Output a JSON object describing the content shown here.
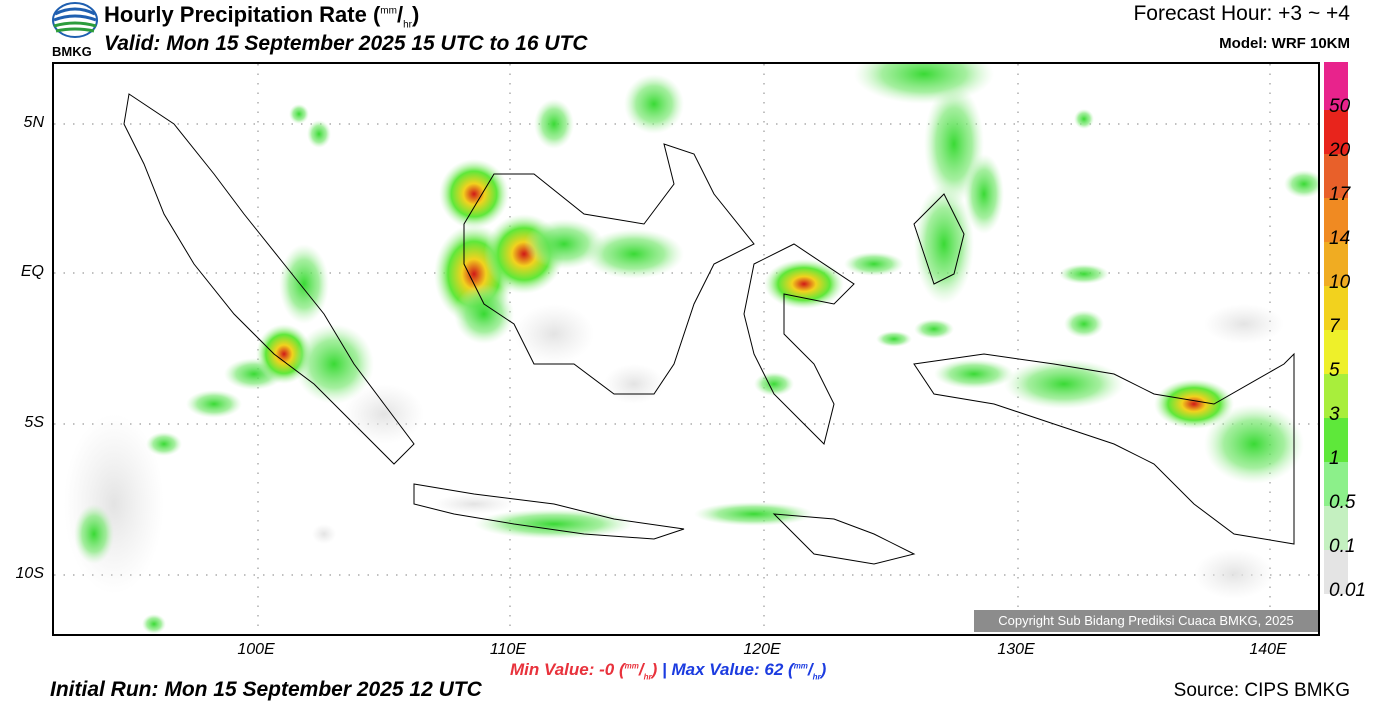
{
  "header": {
    "title": "Hourly Precipitation Rate (",
    "title_unit_sup": "mm",
    "title_unit_sub": "hr",
    "title_close": ")",
    "valid": "Valid: Mon 15 September 2025 15 UTC to 16 UTC",
    "forecast_hour": "Forecast Hour: +3 ~ +4",
    "model": "Model: WRF 10KM",
    "logo_text": "BMKG"
  },
  "axes": {
    "lat_labels": [
      "5N",
      "EQ",
      "5S",
      "10S"
    ],
    "lon_labels": [
      "100E",
      "110E",
      "120E",
      "130E",
      "140E"
    ]
  },
  "legend": {
    "levels": [
      {
        "label": "50",
        "color": "#e8238c"
      },
      {
        "label": "20",
        "color": "#e8241c"
      },
      {
        "label": "17",
        "color": "#e8602a"
      },
      {
        "label": "14",
        "color": "#f08a22"
      },
      {
        "label": "10",
        "color": "#f0ac22"
      },
      {
        "label": "7",
        "color": "#f2d21e"
      },
      {
        "label": "5",
        "color": "#eef02a"
      },
      {
        "label": "3",
        "color": "#a8ee3c"
      },
      {
        "label": "1",
        "color": "#5ee83a"
      },
      {
        "label": "0.5",
        "color": "#8cf08a"
      },
      {
        "label": "0.1",
        "color": "#c4f0c0"
      },
      {
        "label": "0.01",
        "color": "#e4e4e4"
      }
    ]
  },
  "footer": {
    "copyright": "Copyright Sub Bidang Prediksi Cuaca BMKG, 2025",
    "min_label": "Min Value:  -0 (",
    "max_label": "Max Value:  62 (",
    "unit_sup": "mm",
    "unit_sub": "hr",
    "separator": "|",
    "initial_run": "Initial Run: Mon 15 September 2025 12 UTC",
    "source": "Source: CIPS BMKG"
  }
}
